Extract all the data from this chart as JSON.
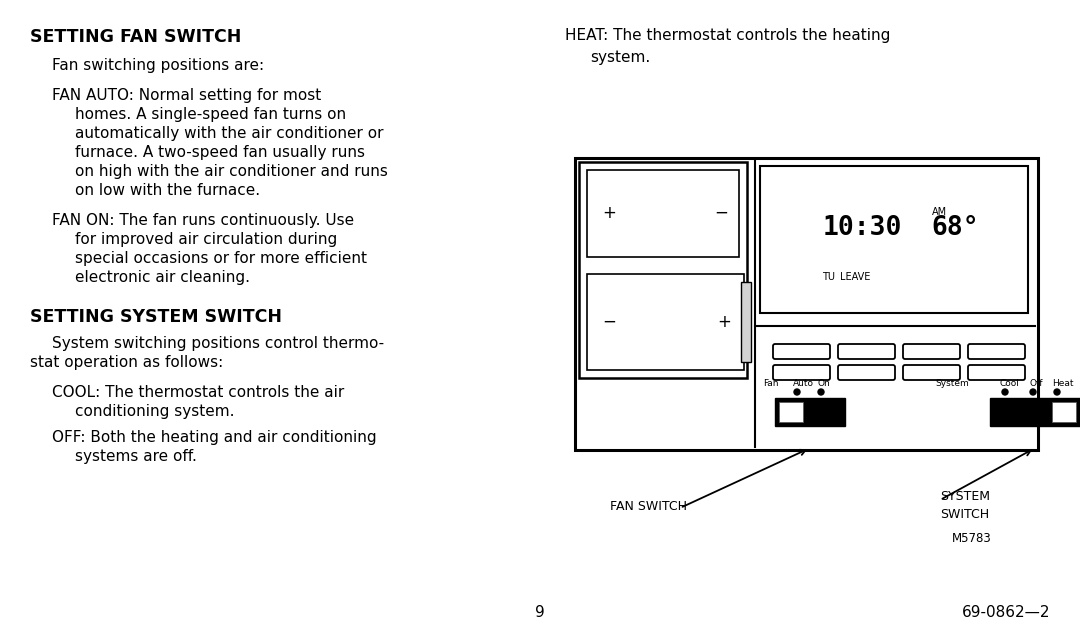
{
  "bg_color": "#ffffff",
  "text_color": "#000000",
  "title1": "SETTING FAN SWITCH",
  "title2": "SETTING SYSTEM SWITCH",
  "page_number": "9",
  "doc_number": "69-0862—2",
  "model_number": "M5783"
}
